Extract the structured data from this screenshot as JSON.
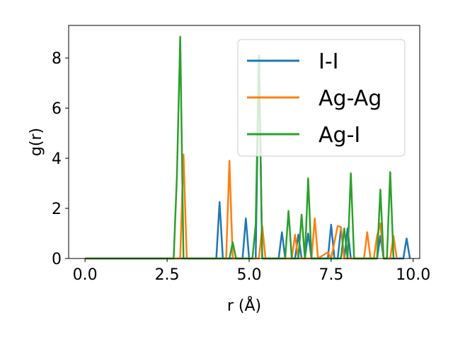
{
  "chart_data": {
    "type": "line",
    "xlabel": "r (Å)",
    "ylabel": "g(r)",
    "xlim": [
      -0.5,
      10.2
    ],
    "ylim": [
      0,
      9.3
    ],
    "x_ticks": [
      "0.0",
      "2.5",
      "5.0",
      "7.5",
      "10.0"
    ],
    "y_ticks": [
      "0",
      "2",
      "4",
      "6",
      "8"
    ],
    "grid": false,
    "legend_position": "top-right",
    "series": [
      {
        "name": "I-I",
        "color": "#1f77b4",
        "points": [
          [
            0,
            0
          ],
          [
            4.0,
            0
          ],
          [
            4.1,
            2.25
          ],
          [
            4.2,
            0
          ],
          [
            4.8,
            0
          ],
          [
            4.9,
            1.6
          ],
          [
            5.0,
            0
          ],
          [
            5.2,
            0
          ],
          [
            5.3,
            8.1
          ],
          [
            5.4,
            0
          ],
          [
            5.9,
            0
          ],
          [
            6.0,
            1.05
          ],
          [
            6.1,
            0
          ],
          [
            6.4,
            0
          ],
          [
            6.5,
            0.95
          ],
          [
            6.6,
            0
          ],
          [
            6.7,
            0
          ],
          [
            6.8,
            1.0
          ],
          [
            6.9,
            0
          ],
          [
            7.4,
            0
          ],
          [
            7.5,
            1.35
          ],
          [
            7.6,
            0
          ],
          [
            7.7,
            0
          ],
          [
            7.8,
            1.2
          ],
          [
            7.9,
            0
          ],
          [
            8.0,
            1.2
          ],
          [
            8.1,
            0
          ],
          [
            8.9,
            0
          ],
          [
            9.0,
            0.9
          ],
          [
            9.1,
            0
          ],
          [
            9.7,
            0
          ],
          [
            9.8,
            0.8
          ],
          [
            9.9,
            0
          ]
        ]
      },
      {
        "name": "Ag-Ag",
        "color": "#ff7f0e",
        "points": [
          [
            0,
            0
          ],
          [
            2.9,
            0
          ],
          [
            3.0,
            4.15
          ],
          [
            3.1,
            0
          ],
          [
            4.3,
            0
          ],
          [
            4.4,
            3.9
          ],
          [
            4.5,
            0
          ],
          [
            5.3,
            0
          ],
          [
            5.4,
            1.3
          ],
          [
            5.5,
            0
          ],
          [
            6.3,
            0
          ],
          [
            6.4,
            0.95
          ],
          [
            6.5,
            0
          ],
          [
            6.9,
            0
          ],
          [
            7.0,
            1.6
          ],
          [
            7.1,
            0
          ],
          [
            7.4,
            0.25
          ],
          [
            7.5,
            0
          ],
          [
            7.7,
            1.3
          ],
          [
            7.8,
            1.25
          ],
          [
            7.9,
            0
          ],
          [
            8.5,
            0
          ],
          [
            8.6,
            1.05
          ],
          [
            8.7,
            0
          ],
          [
            8.8,
            0
          ],
          [
            8.9,
            0.9
          ],
          [
            9.0,
            1.4
          ],
          [
            9.1,
            0
          ],
          [
            9.3,
            0
          ],
          [
            9.4,
            0.9
          ],
          [
            9.5,
            0
          ]
        ]
      },
      {
        "name": "Ag-I",
        "color": "#2ca02c",
        "points": [
          [
            0,
            0
          ],
          [
            2.7,
            0
          ],
          [
            2.8,
            3.3
          ],
          [
            2.9,
            8.85
          ],
          [
            3.0,
            0
          ],
          [
            4.4,
            0
          ],
          [
            4.5,
            0.65
          ],
          [
            4.6,
            0
          ],
          [
            5.1,
            0
          ],
          [
            5.2,
            1.35
          ],
          [
            5.3,
            8.05
          ],
          [
            5.4,
            0
          ],
          [
            6.1,
            0
          ],
          [
            6.2,
            1.9
          ],
          [
            6.3,
            0
          ],
          [
            6.5,
            0
          ],
          [
            6.6,
            1.75
          ],
          [
            6.7,
            0
          ],
          [
            6.8,
            3.2
          ],
          [
            6.9,
            0
          ],
          [
            7.8,
            0
          ],
          [
            7.9,
            1.2
          ],
          [
            8.0,
            0
          ],
          [
            8.1,
            3.4
          ],
          [
            8.2,
            0
          ],
          [
            8.9,
            0
          ],
          [
            9.0,
            2.75
          ],
          [
            9.1,
            0
          ],
          [
            9.2,
            0
          ],
          [
            9.3,
            3.45
          ],
          [
            9.4,
            0
          ]
        ]
      }
    ]
  }
}
